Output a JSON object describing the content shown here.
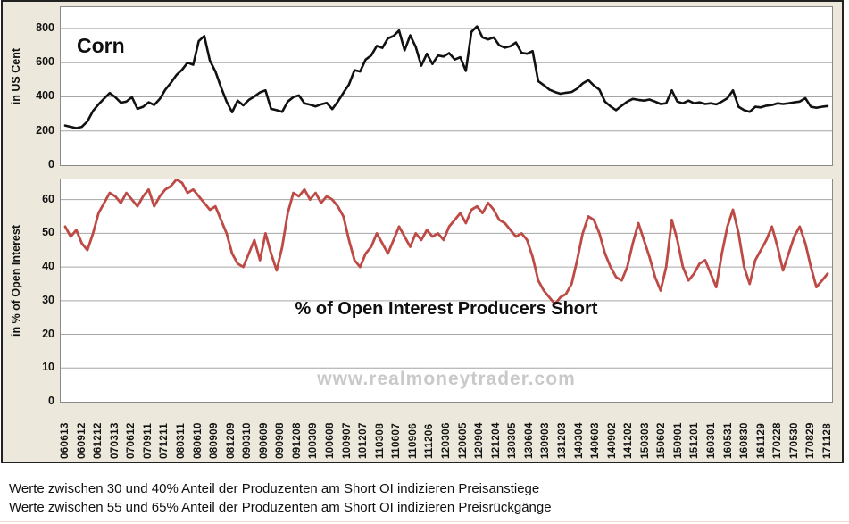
{
  "page": {
    "watermark": "www.realmoneytrader.com",
    "footnote_line1": "Werte zwischen 30 und 40% Anteil der Produzenten am Short OI indizieren Preisanstiege",
    "footnote_line2": "Werte zwischen 55 und 65% Anteil der Produzenten am Short OI indizieren Preisrückgänge"
  },
  "colors": {
    "chart_background": "#ece8db",
    "plot_background": "#ffffff",
    "gridline": "#a6a6a6",
    "frame_border": "#222222",
    "price_line": "#111111",
    "oi_line": "#be4a46",
    "watermark": "#c9c9c9"
  },
  "chart_data": [
    {
      "type": "line",
      "title": "Corn",
      "ylabel": "in US Cent",
      "yticks": [
        0,
        200,
        400,
        600,
        800
      ],
      "ylim": [
        0,
        925
      ],
      "grid": true,
      "legend_position": "none",
      "x_range_labels": [
        "060613",
        "171128"
      ],
      "series": [
        {
          "name": "Corn",
          "color": "#111111",
          "values": [
            232,
            224,
            217,
            224,
            256,
            318,
            356,
            390,
            422,
            398,
            366,
            372,
            398,
            330,
            342,
            368,
            352,
            388,
            442,
            482,
            528,
            558,
            600,
            588,
            726,
            756,
            612,
            548,
            456,
            372,
            310,
            378,
            350,
            382,
            402,
            426,
            438,
            330,
            322,
            312,
            372,
            398,
            408,
            362,
            354,
            344,
            356,
            364,
            328,
            372,
            424,
            472,
            556,
            548,
            618,
            642,
            698,
            686,
            742,
            756,
            788,
            672,
            760,
            692,
            582,
            652,
            592,
            642,
            636,
            656,
            618,
            632,
            552,
            780,
            812,
            748,
            736,
            748,
            702,
            688,
            696,
            718,
            658,
            652,
            668,
            492,
            468,
            442,
            428,
            418,
            424,
            428,
            448,
            478,
            498,
            466,
            442,
            372,
            344,
            322,
            348,
            372,
            388,
            382,
            378,
            384,
            372,
            358,
            362,
            438,
            372,
            362,
            378,
            362,
            368,
            358,
            362,
            356,
            372,
            392,
            438,
            342,
            322,
            312,
            342,
            338,
            348,
            352,
            362,
            358,
            362,
            368,
            372,
            392,
            342,
            336,
            342,
            346
          ]
        }
      ]
    },
    {
      "type": "line",
      "annotation": "% of Open Interest Producers Short",
      "ylabel": "in % of Open Interest",
      "yticks": [
        0,
        10,
        20,
        30,
        40,
        50,
        60
      ],
      "ylim": [
        0,
        66
      ],
      "grid": true,
      "legend_position": "none",
      "x_tick_labels": [
        "060613",
        "060912",
        "061212",
        "070313",
        "070612",
        "070911",
        "071211",
        "080311",
        "080610",
        "080909",
        "081209",
        "090310",
        "090609",
        "090908",
        "091208",
        "100309",
        "100608",
        "100907",
        "101207",
        "110308",
        "110607",
        "110906",
        "111206",
        "120306",
        "120605",
        "120904",
        "121204",
        "130305",
        "130604",
        "130903",
        "131203",
        "140304",
        "140603",
        "140902",
        "141202",
        "150303",
        "150602",
        "150901",
        "151201",
        "160301",
        "160531",
        "160830",
        "161129",
        "170228",
        "170530",
        "170829",
        "171128"
      ],
      "series": [
        {
          "name": "% of Open Interest Producers Short",
          "color": "#be4a46",
          "values": [
            52,
            49,
            51,
            47,
            45,
            50,
            56,
            59,
            62,
            61,
            59,
            62,
            60,
            58,
            61,
            63,
            58,
            61,
            63,
            64,
            66,
            65,
            62,
            63,
            61,
            59,
            57,
            58,
            54,
            50,
            44,
            41,
            40,
            44,
            48,
            42,
            50,
            44,
            39,
            46,
            56,
            62,
            61,
            63,
            60,
            62,
            59,
            61,
            60,
            58,
            55,
            48,
            42,
            40,
            44,
            46,
            50,
            47,
            44,
            48,
            52,
            49,
            46,
            50,
            48,
            51,
            49,
            50,
            48,
            52,
            54,
            56,
            53,
            57,
            58,
            56,
            59,
            57,
            54,
            53,
            51,
            49,
            50,
            48,
            43,
            36,
            33,
            31,
            29,
            31,
            32,
            35,
            42,
            50,
            55,
            54,
            50,
            44,
            40,
            37,
            36,
            40,
            47,
            53,
            48,
            43,
            37,
            33,
            40,
            54,
            48,
            40,
            36,
            38,
            41,
            42,
            38,
            34,
            44,
            52,
            57,
            50,
            40,
            35,
            42,
            45,
            48,
            52,
            46,
            39,
            44,
            49,
            52,
            47,
            40,
            34,
            36,
            38
          ]
        }
      ]
    }
  ]
}
